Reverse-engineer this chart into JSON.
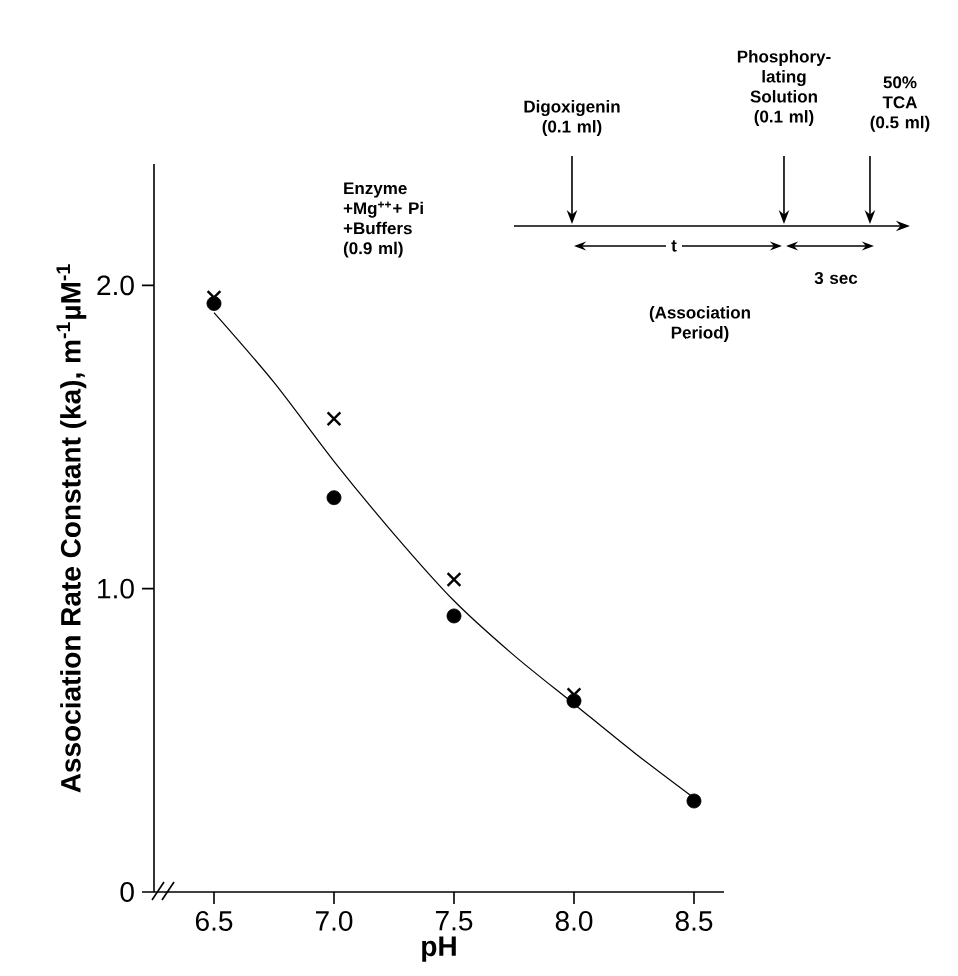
{
  "chart_data": {
    "type": "scatter",
    "xlabel": "pH",
    "ylabel": "Association Rate Constant (ka), m$^{-1}$µM$^{-1}$",
    "xlim": [
      6.25,
      8.625
    ],
    "ylim": [
      0,
      2.4
    ],
    "xticks": [
      6.5,
      {
        "value": 7,
        "label": "7.0"
      },
      7.5,
      {
        "value": 8,
        "label": "8.0"
      },
      8.5
    ],
    "yticks": [
      0,
      {
        "value": 1,
        "label": "1.0"
      },
      {
        "value": 2,
        "label": "2.0"
      }
    ],
    "grid": false,
    "series": [
      {
        "marker": "circle",
        "color": "#000000",
        "x": [
          6.5,
          7.0,
          7.5,
          8.0,
          8.5
        ],
        "values": [
          1.94,
          1.3,
          0.91,
          0.63,
          0.3
        ]
      },
      {
        "marker": "cross",
        "color": "#000000",
        "x": [
          6.5,
          7.0,
          7.5,
          8.0
        ],
        "values": [
          1.96,
          1.56,
          1.03,
          0.65
        ]
      },
      {
        "type": "line",
        "marker": "none",
        "color": "#000000",
        "x": [
          6.5,
          6.75,
          7.0,
          7.25,
          7.5,
          7.75,
          8.0,
          8.25,
          8.5
        ],
        "values": [
          1.91,
          1.68,
          1.42,
          1.18,
          0.96,
          0.78,
          0.62,
          0.46,
          0.31
        ]
      }
    ],
    "annotations": [
      "Enzyme +Mg$^{++}$+ Pi +Buffers (0.9 ml)",
      "Digoxigenin (0.1 ml)",
      "Phosphory-lating Solution (0.1 ml)",
      "50% TCA (0.5 ml)",
      "t",
      "3 sec",
      "(Association Period)"
    ]
  }
}
